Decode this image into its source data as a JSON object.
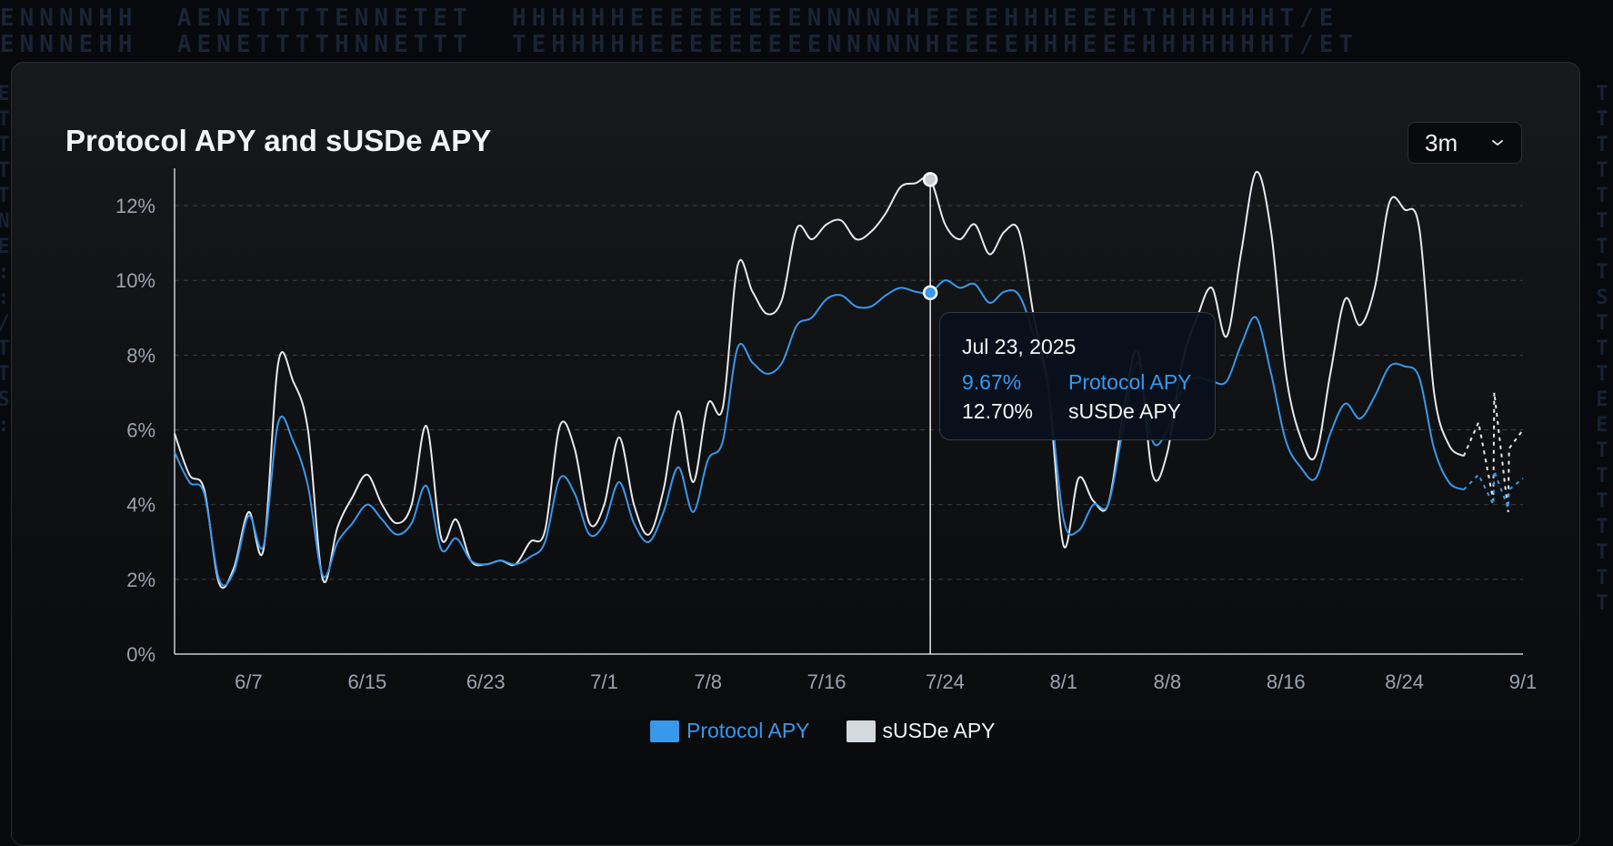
{
  "background": {
    "rows": [
      "ENNNNHH  AENETTTTENNETET  HHHHHHEEEEEEEEENNNNNHEEEEHHHEEEHTHHHHHHT/E",
      "ENNNEHH  AENETTTTHNNETTT  TEHHHHHEEEEEEEEENNNNNHEEEEHHHEEEHHHHHHHT/ET"
    ],
    "left_column": "E\nT\nT\nT\nT\nN\nE\n:\n:\n/\nT\nT\nS\n:",
    "right_column": "T\nT\nT\nT\nT\nT\nT\nT\nS\nT\nT\nT\nE\nE\nT\nT\nT\nT\nT\nT\nT"
  },
  "title": "Protocol APY and sUSDe APY",
  "range_selector": {
    "value": "3m",
    "icon": "chevron-down-icon"
  },
  "colors": {
    "protocol": "#3898ec",
    "susde": "#e6e9ef",
    "grid": "#3a3f46",
    "axis_text": "#9ca3af",
    "axis_line": "#c9ccd2"
  },
  "chart_data": {
    "type": "line",
    "title": "Protocol APY and sUSDe APY",
    "xlabel": "",
    "ylabel": "",
    "x_range": [
      "2025-06-02",
      "2025-09-01"
    ],
    "ylim": [
      0,
      13
    ],
    "y_ticks": [
      0,
      2,
      4,
      6,
      8,
      10,
      12
    ],
    "y_tick_labels": [
      "0%",
      "2%",
      "4%",
      "6%",
      "8%",
      "10%",
      "12%"
    ],
    "x_ticks": [
      "2025-06-07",
      "2025-06-15",
      "2025-06-23",
      "2025-07-01",
      "2025-07-08",
      "2025-07-16",
      "2025-07-24",
      "2025-08-01",
      "2025-08-08",
      "2025-08-16",
      "2025-08-24",
      "2025-09-01"
    ],
    "x_tick_labels": [
      "6/7",
      "6/15",
      "6/23",
      "7/1",
      "7/8",
      "7/16",
      "7/24",
      "8/1",
      "8/8",
      "8/16",
      "8/24",
      "9/1"
    ],
    "grid": true,
    "legend_position": "bottom-center",
    "series": [
      {
        "name": "Protocol APY",
        "x": [
          "2025-06-02",
          "2025-06-03",
          "2025-06-04",
          "2025-06-05",
          "2025-06-06",
          "2025-06-07",
          "2025-06-08",
          "2025-06-09",
          "2025-06-10",
          "2025-06-11",
          "2025-06-12",
          "2025-06-13",
          "2025-06-14",
          "2025-06-15",
          "2025-06-16",
          "2025-06-17",
          "2025-06-18",
          "2025-06-19",
          "2025-06-20",
          "2025-06-21",
          "2025-06-22",
          "2025-06-23",
          "2025-06-24",
          "2025-06-25",
          "2025-06-26",
          "2025-06-27",
          "2025-06-28",
          "2025-06-29",
          "2025-06-30",
          "2025-07-01",
          "2025-07-02",
          "2025-07-03",
          "2025-07-04",
          "2025-07-05",
          "2025-07-06",
          "2025-07-07",
          "2025-07-08",
          "2025-07-09",
          "2025-07-10",
          "2025-07-11",
          "2025-07-12",
          "2025-07-13",
          "2025-07-14",
          "2025-07-15",
          "2025-07-16",
          "2025-07-17",
          "2025-07-18",
          "2025-07-19",
          "2025-07-20",
          "2025-07-21",
          "2025-07-22",
          "2025-07-23",
          "2025-07-24",
          "2025-07-25",
          "2025-07-26",
          "2025-07-27",
          "2025-07-28",
          "2025-07-29",
          "2025-07-30",
          "2025-07-31",
          "2025-08-01",
          "2025-08-02",
          "2025-08-03",
          "2025-08-04",
          "2025-08-05",
          "2025-08-06",
          "2025-08-07",
          "2025-08-08",
          "2025-08-09",
          "2025-08-10",
          "2025-08-11",
          "2025-08-12",
          "2025-08-13",
          "2025-08-14",
          "2025-08-15",
          "2025-08-16",
          "2025-08-17",
          "2025-08-18",
          "2025-08-19",
          "2025-08-20",
          "2025-08-21",
          "2025-08-22",
          "2025-08-23",
          "2025-08-24",
          "2025-08-25",
          "2025-08-26",
          "2025-08-27",
          "2025-08-28"
        ],
        "values": [
          5.4,
          4.6,
          4.3,
          2.0,
          2.2,
          3.7,
          2.9,
          6.2,
          5.7,
          4.5,
          2.1,
          3.0,
          3.5,
          4.0,
          3.6,
          3.2,
          3.5,
          4.5,
          2.8,
          3.1,
          2.5,
          2.4,
          2.5,
          2.4,
          2.6,
          3.0,
          4.7,
          4.3,
          3.2,
          3.5,
          4.6,
          3.5,
          3.0,
          3.8,
          5.0,
          3.8,
          5.2,
          5.7,
          8.2,
          7.8,
          7.5,
          7.8,
          8.8,
          9.0,
          9.5,
          9.6,
          9.3,
          9.3,
          9.6,
          9.8,
          9.7,
          9.67,
          10.0,
          9.8,
          9.9,
          9.4,
          9.7,
          9.6,
          8.5,
          7.0,
          3.6,
          3.3,
          4.0,
          4.0,
          6.0,
          7.8,
          5.7,
          6.0,
          7.1,
          7.4,
          7.3,
          7.3,
          8.3,
          9.0,
          7.5,
          5.7,
          5.0,
          4.7,
          5.9,
          6.7,
          6.3,
          6.9,
          7.7,
          7.7,
          7.4,
          5.5,
          4.6,
          4.4
        ],
        "projection": {
          "x": [
            "2025-08-29",
            "2025-08-30",
            "2025-08-30",
            "2025-08-31",
            "2025-08-31",
            "2025-09-01"
          ],
          "values": [
            4.8,
            4.0,
            4.9,
            3.9,
            4.4,
            4.7
          ]
        }
      },
      {
        "name": "sUSDe APY",
        "x": [
          "2025-06-02",
          "2025-06-03",
          "2025-06-04",
          "2025-06-05",
          "2025-06-06",
          "2025-06-07",
          "2025-06-08",
          "2025-06-09",
          "2025-06-10",
          "2025-06-11",
          "2025-06-12",
          "2025-06-13",
          "2025-06-14",
          "2025-06-15",
          "2025-06-16",
          "2025-06-17",
          "2025-06-18",
          "2025-06-19",
          "2025-06-20",
          "2025-06-21",
          "2025-06-22",
          "2025-06-23",
          "2025-06-24",
          "2025-06-25",
          "2025-06-26",
          "2025-06-27",
          "2025-06-28",
          "2025-06-29",
          "2025-06-30",
          "2025-07-01",
          "2025-07-02",
          "2025-07-03",
          "2025-07-04",
          "2025-07-05",
          "2025-07-06",
          "2025-07-07",
          "2025-07-08",
          "2025-07-09",
          "2025-07-10",
          "2025-07-11",
          "2025-07-12",
          "2025-07-13",
          "2025-07-14",
          "2025-07-15",
          "2025-07-16",
          "2025-07-17",
          "2025-07-18",
          "2025-07-19",
          "2025-07-20",
          "2025-07-21",
          "2025-07-22",
          "2025-07-23",
          "2025-07-24",
          "2025-07-25",
          "2025-07-26",
          "2025-07-27",
          "2025-07-28",
          "2025-07-29",
          "2025-07-30",
          "2025-07-31",
          "2025-08-01",
          "2025-08-02",
          "2025-08-03",
          "2025-08-04",
          "2025-08-05",
          "2025-08-06",
          "2025-08-07",
          "2025-08-08",
          "2025-08-09",
          "2025-08-10",
          "2025-08-11",
          "2025-08-12",
          "2025-08-13",
          "2025-08-14",
          "2025-08-15",
          "2025-08-16",
          "2025-08-17",
          "2025-08-18",
          "2025-08-19",
          "2025-08-20",
          "2025-08-21",
          "2025-08-22",
          "2025-08-23",
          "2025-08-24",
          "2025-08-25",
          "2025-08-26",
          "2025-08-27",
          "2025-08-28"
        ],
        "values": [
          5.9,
          4.8,
          4.4,
          1.9,
          2.3,
          3.8,
          2.8,
          7.8,
          7.3,
          6.0,
          2.0,
          3.4,
          4.2,
          4.8,
          4.0,
          3.5,
          4.0,
          6.1,
          3.1,
          3.6,
          2.5,
          2.4,
          2.5,
          2.4,
          3.0,
          3.3,
          6.1,
          5.5,
          3.5,
          4.0,
          5.8,
          4.0,
          3.2,
          4.4,
          6.5,
          4.6,
          6.7,
          6.6,
          10.4,
          9.7,
          9.1,
          9.5,
          11.4,
          11.1,
          11.5,
          11.6,
          11.1,
          11.3,
          11.8,
          12.5,
          12.6,
          12.7,
          11.5,
          11.1,
          11.5,
          10.7,
          11.3,
          11.3,
          9.0,
          7.0,
          2.9,
          4.7,
          4.1,
          4.0,
          6.4,
          8.1,
          4.8,
          5.4,
          7.8,
          9.0,
          9.8,
          8.5,
          10.8,
          12.9,
          11.3,
          7.5,
          5.8,
          5.3,
          7.5,
          9.5,
          8.8,
          9.8,
          12.1,
          11.9,
          11.4,
          7.0,
          5.6,
          5.3
        ],
        "projection": {
          "x": [
            "2025-08-29",
            "2025-08-30",
            "2025-08-30",
            "2025-08-31",
            "2025-08-31",
            "2025-09-01"
          ],
          "values": [
            6.2,
            4.1,
            7.0,
            3.8,
            5.5,
            6.0
          ]
        }
      }
    ],
    "tooltip": {
      "x": "2025-07-23",
      "date_label": "Jul 23, 2025",
      "rows": [
        {
          "value": "9.67%",
          "name": "Protocol APY"
        },
        {
          "value": "12.70%",
          "name": "sUSDe APY"
        }
      ]
    },
    "legend": [
      {
        "name": "Protocol APY",
        "color": "#3898ec"
      },
      {
        "name": "sUSDe APY",
        "color": "#e6e9ef"
      }
    ]
  }
}
